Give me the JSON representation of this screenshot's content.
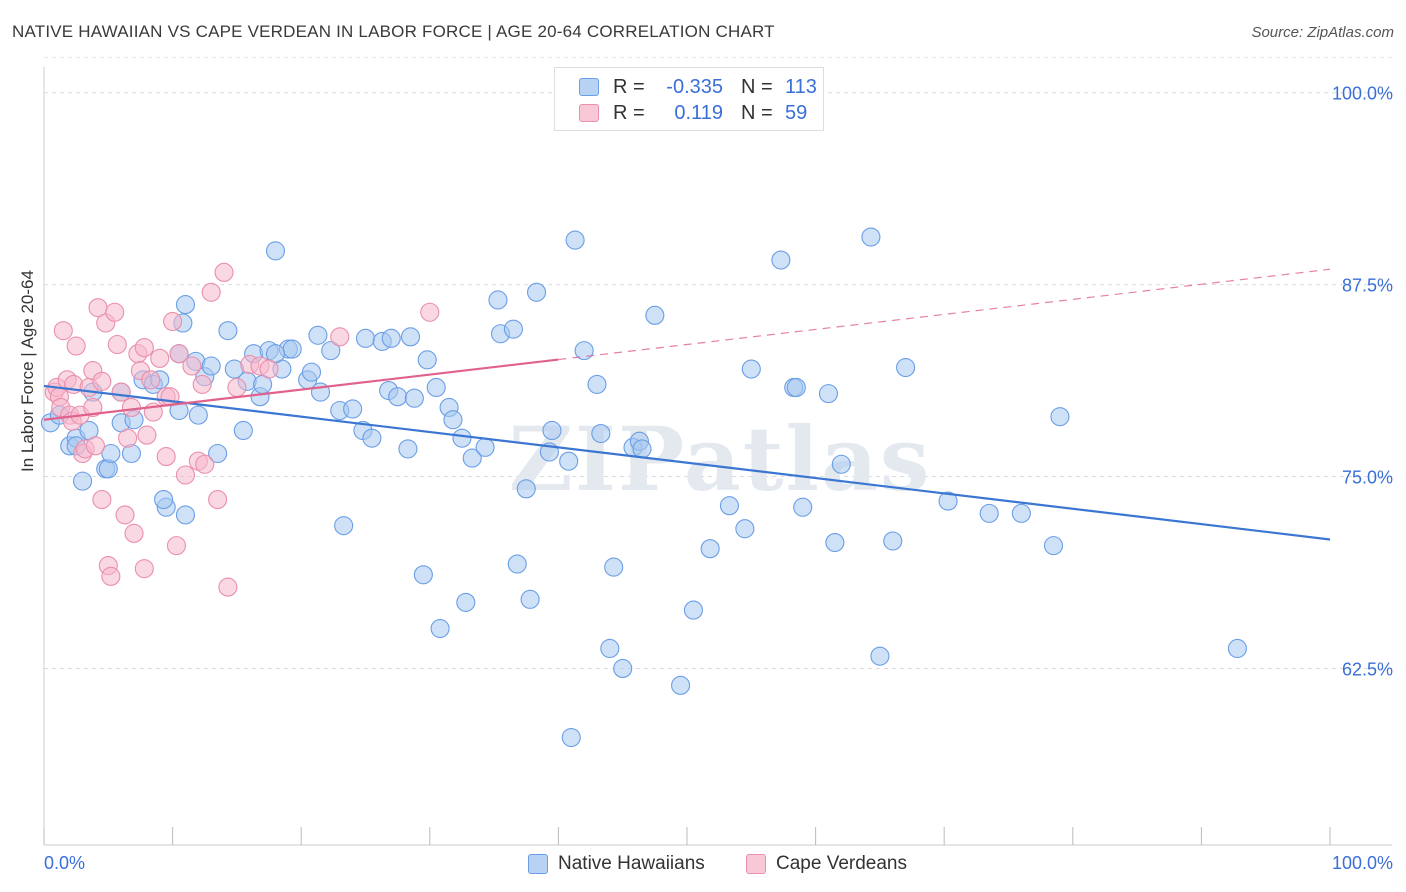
{
  "title": "NATIVE HAWAIIAN VS CAPE VERDEAN IN LABOR FORCE | AGE 20-64 CORRELATION CHART",
  "source": "Source: ZipAtlas.com",
  "watermark": "ZIPatlas",
  "legend_top": {
    "rows": [
      {
        "r_label": "R =",
        "r_value": "-0.335",
        "n_label": "N =",
        "n_value": "113",
        "color": "#a8c8f0"
      },
      {
        "r_label": "R =",
        "r_value": "0.119",
        "n_label": "N =",
        "n_value": "59",
        "color": "#f5b8cc"
      }
    ]
  },
  "legend_bottom": [
    {
      "label": "Native Hawaiians",
      "color": "#a8c8f0"
    },
    {
      "label": "Cape Verdeans",
      "color": "#f5b8cc"
    }
  ],
  "chart_data": {
    "type": "scatter",
    "title": "NATIVE HAWAIIAN VS CAPE VERDEAN IN LABOR FORCE | AGE 20-64 CORRELATION CHART",
    "xlabel": "",
    "ylabel": "In Labor Force | Age 20-64",
    "xlim": [
      0,
      100
    ],
    "ylim": [
      51,
      102
    ],
    "x_tick_labels": [
      "0.0%",
      "100.0%"
    ],
    "y_ticks": [
      62.5,
      75.0,
      87.5,
      100.0
    ],
    "y_tick_labels": [
      "62.5%",
      "75.0%",
      "87.5%",
      "100.0%"
    ],
    "grid": true,
    "series": [
      {
        "name": "Native Hawaiians",
        "color": "#6a9ee6",
        "fill": "#a8c8f0",
        "trend": {
          "x0": 0,
          "y0": 80.9,
          "x1": 100,
          "y1": 70.9,
          "color": "#3a76d2",
          "dashed_from": null
        },
        "points": [
          [
            0.5,
            78.5
          ],
          [
            1.2,
            79.0
          ],
          [
            2.0,
            77.0
          ],
          [
            2.5,
            77.5
          ],
          [
            3.0,
            74.7
          ],
          [
            3.8,
            80.5
          ],
          [
            4.8,
            75.5
          ],
          [
            5.0,
            75.5
          ],
          [
            5.2,
            76.5
          ],
          [
            6.0,
            78.5
          ],
          [
            6.8,
            76.5
          ],
          [
            7.0,
            78.7
          ],
          [
            7.7,
            81.3
          ],
          [
            8.5,
            81.0
          ],
          [
            9.0,
            81.3
          ],
          [
            9.5,
            73.0
          ],
          [
            9.3,
            73.5
          ],
          [
            10.5,
            83.0
          ],
          [
            10.5,
            79.3
          ],
          [
            10.8,
            85.0
          ],
          [
            11.0,
            86.2
          ],
          [
            11.8,
            82.5
          ],
          [
            12.5,
            81.5
          ],
          [
            13.0,
            82.2
          ],
          [
            13.5,
            76.5
          ],
          [
            14.3,
            84.5
          ],
          [
            14.8,
            82.0
          ],
          [
            15.5,
            78.0
          ],
          [
            15.8,
            81.2
          ],
          [
            16.3,
            83.0
          ],
          [
            16.8,
            80.2
          ],
          [
            17.0,
            81.0
          ],
          [
            17.5,
            83.2
          ],
          [
            18.0,
            89.7
          ],
          [
            18.5,
            82.0
          ],
          [
            19.0,
            83.3
          ],
          [
            19.3,
            83.3
          ],
          [
            20.5,
            81.3
          ],
          [
            20.8,
            81.8
          ],
          [
            21.3,
            84.2
          ],
          [
            21.5,
            80.5
          ],
          [
            22.3,
            83.2
          ],
          [
            23.0,
            79.3
          ],
          [
            23.3,
            71.8
          ],
          [
            24.0,
            79.4
          ],
          [
            24.8,
            78.0
          ],
          [
            25.0,
            84.0
          ],
          [
            25.5,
            77.5
          ],
          [
            26.3,
            83.8
          ],
          [
            26.8,
            80.6
          ],
          [
            27.5,
            80.2
          ],
          [
            28.3,
            76.8
          ],
          [
            28.5,
            84.1
          ],
          [
            28.8,
            80.1
          ],
          [
            29.5,
            68.6
          ],
          [
            29.8,
            82.6
          ],
          [
            30.5,
            80.8
          ],
          [
            30.8,
            65.1
          ],
          [
            31.5,
            79.5
          ],
          [
            31.8,
            78.7
          ],
          [
            32.5,
            77.5
          ],
          [
            32.8,
            66.8
          ],
          [
            33.3,
            76.2
          ],
          [
            34.3,
            76.9
          ],
          [
            35.3,
            86.5
          ],
          [
            35.5,
            84.3
          ],
          [
            36.5,
            84.6
          ],
          [
            36.8,
            69.3
          ],
          [
            37.5,
            74.2
          ],
          [
            37.8,
            67.0
          ],
          [
            38.3,
            87.0
          ],
          [
            39.3,
            76.6
          ],
          [
            39.5,
            78.0
          ],
          [
            40.8,
            76.0
          ],
          [
            41.0,
            58.0
          ],
          [
            41.3,
            90.4
          ],
          [
            42.0,
            83.2
          ],
          [
            43.0,
            81.0
          ],
          [
            43.3,
            77.8
          ],
          [
            44.0,
            63.8
          ],
          [
            44.3,
            69.1
          ],
          [
            45.0,
            62.5
          ],
          [
            45.8,
            76.9
          ],
          [
            46.3,
            77.3
          ],
          [
            46.5,
            76.8
          ],
          [
            47.5,
            85.5
          ],
          [
            49.5,
            61.4
          ],
          [
            50.5,
            66.3
          ],
          [
            51.8,
            70.3
          ],
          [
            53.3,
            73.1
          ],
          [
            54.5,
            71.6
          ],
          [
            57.3,
            89.1
          ],
          [
            58.3,
            80.8
          ],
          [
            58.5,
            80.8
          ],
          [
            59.0,
            73.0
          ],
          [
            61.0,
            80.4
          ],
          [
            61.5,
            70.7
          ],
          [
            62.0,
            75.8
          ],
          [
            64.3,
            90.6
          ],
          [
            65.0,
            63.3
          ],
          [
            66.0,
            70.8
          ],
          [
            67.0,
            82.1
          ],
          [
            70.3,
            73.4
          ],
          [
            73.5,
            72.6
          ],
          [
            76.0,
            72.6
          ],
          [
            78.5,
            70.5
          ],
          [
            79.0,
            78.9
          ],
          [
            92.8,
            63.8
          ],
          [
            55.0,
            82.0
          ],
          [
            27.0,
            84.0
          ],
          [
            18.0,
            83.0
          ],
          [
            12.0,
            79.0
          ],
          [
            6.0,
            80.5
          ],
          [
            3.5,
            78.0
          ],
          [
            2.5,
            77.0
          ],
          [
            11.0,
            72.5
          ]
        ]
      },
      {
        "name": "Cape Verdeans",
        "color": "#ea8fac",
        "fill": "#f5b8cc",
        "trend": {
          "x0": 0,
          "y0": 78.7,
          "x1": 100,
          "y1": 88.5,
          "color": "#e0628c",
          "solid_until": 40
        },
        "points": [
          [
            0.8,
            80.5
          ],
          [
            1.0,
            80.8
          ],
          [
            1.2,
            80.2
          ],
          [
            1.3,
            79.5
          ],
          [
            1.5,
            84.5
          ],
          [
            1.8,
            81.3
          ],
          [
            2.0,
            79.0
          ],
          [
            2.2,
            78.6
          ],
          [
            2.3,
            81.0
          ],
          [
            2.5,
            83.5
          ],
          [
            2.8,
            79.0
          ],
          [
            3.0,
            76.5
          ],
          [
            3.2,
            76.8
          ],
          [
            3.5,
            80.8
          ],
          [
            3.8,
            79.5
          ],
          [
            3.8,
            81.9
          ],
          [
            4.0,
            77.0
          ],
          [
            4.2,
            86.0
          ],
          [
            4.5,
            81.2
          ],
          [
            4.5,
            73.5
          ],
          [
            4.8,
            85.0
          ],
          [
            5.0,
            69.2
          ],
          [
            5.2,
            68.5
          ],
          [
            5.5,
            85.7
          ],
          [
            5.7,
            83.6
          ],
          [
            6.0,
            80.5
          ],
          [
            6.3,
            72.5
          ],
          [
            6.5,
            77.5
          ],
          [
            6.8,
            79.5
          ],
          [
            7.0,
            71.3
          ],
          [
            7.3,
            83.0
          ],
          [
            7.5,
            81.9
          ],
          [
            7.8,
            83.4
          ],
          [
            8.0,
            77.7
          ],
          [
            8.3,
            81.3
          ],
          [
            8.5,
            79.2
          ],
          [
            9.0,
            82.7
          ],
          [
            9.5,
            80.2
          ],
          [
            9.5,
            76.3
          ],
          [
            9.8,
            80.2
          ],
          [
            10.0,
            85.1
          ],
          [
            10.3,
            70.5
          ],
          [
            10.5,
            83.0
          ],
          [
            11.0,
            75.1
          ],
          [
            11.5,
            82.2
          ],
          [
            12.0,
            76.0
          ],
          [
            12.3,
            81.0
          ],
          [
            12.5,
            75.8
          ],
          [
            13.0,
            87.0
          ],
          [
            13.5,
            73.5
          ],
          [
            14.0,
            88.3
          ],
          [
            14.3,
            67.8
          ],
          [
            15.0,
            80.8
          ],
          [
            16.0,
            82.3
          ],
          [
            16.8,
            82.2
          ],
          [
            17.5,
            82.0
          ],
          [
            23.0,
            84.1
          ],
          [
            30.0,
            85.7
          ],
          [
            7.8,
            69.0
          ]
        ]
      }
    ]
  }
}
